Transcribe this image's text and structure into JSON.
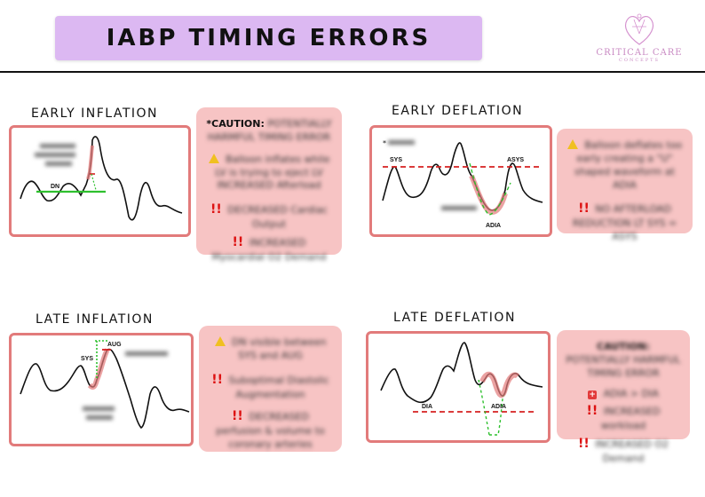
{
  "header": {
    "title": "IABP TIMING ERRORS",
    "logo_name": "CRITICAL CARE",
    "logo_sub": "CONCEPTS"
  },
  "sections": {
    "early_inflation": {
      "title": "EARLY INFLATION",
      "labels": {
        "dn": "DN"
      },
      "blurred_labels": [
        "",
        ""
      ],
      "note": {
        "caution_prefix": "*CAUTION:",
        "caution_rest": "POTENTIALLY HARMFUL TIMING ERROR",
        "warn_text": "Balloon inflates while LV is trying to eject LV INCREASED Afterload",
        "bullet1": "DECREASED Cardiac Output",
        "bullet2": "INCREASED Myocardial O2 Demand"
      }
    },
    "early_deflation": {
      "title": "EARLY DEFLATION",
      "labels": {
        "sys": "SYS",
        "asys": "ASYS",
        "adia": "ADIA"
      },
      "note": {
        "warn_text": "Balloon deflates too early creating a \"U\" shaped waveform at ADIA",
        "bullet1": "NO AFTERLOAD REDUCTION LT SYS = ASYS"
      }
    },
    "late_inflation": {
      "title": "LATE INFLATION",
      "labels": {
        "sys": "SYS",
        "aug": "AUG"
      },
      "note": {
        "warn_text": "DN visible between SYS and AUG",
        "bullet1": "Suboptimal Diastolic Augmentation",
        "bullet2": "DECREASED perfusion & volume to coronary arteries"
      }
    },
    "late_deflation": {
      "title": "LATE DEFLATION",
      "labels": {
        "dia": "DIA",
        "adia": "ADIA"
      },
      "note": {
        "caution_prefix": "CAUTION:",
        "caution_rest": "POTENTIALLY HARMFUL TIMING ERROR",
        "icon_text": "ADIA > DIA",
        "bullet1": "INCREASED workload",
        "bullet2": "INCREASED O2 Demand"
      }
    }
  },
  "colors": {
    "banner": "#dcb8f2",
    "box_border": "#e27b7b",
    "note_bg": "#f7c4c4",
    "green_line": "#2ec02e",
    "red_dashed": "#d62020",
    "highlight": "#f0a0a0"
  }
}
